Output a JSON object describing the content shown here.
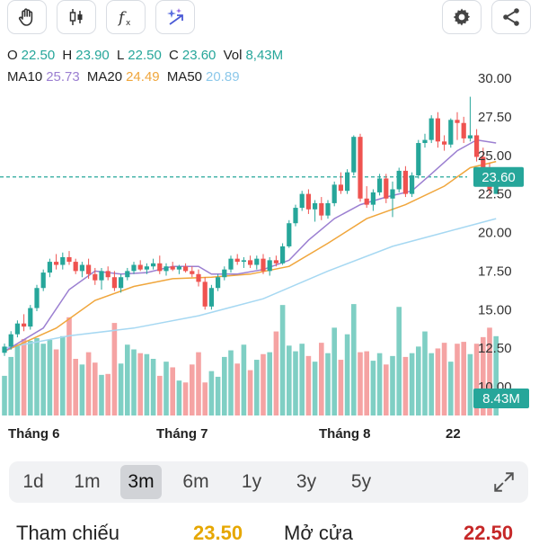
{
  "toolbar": {
    "left_icons": [
      "hand-icon",
      "candlestick-icon",
      "function-icon",
      "ai-sparkle-icon"
    ],
    "right_icons": [
      "gear-icon",
      "share-icon"
    ]
  },
  "ohlc": {
    "o_label": "O",
    "o_value": "22.50",
    "h_label": "H",
    "h_value": "23.90",
    "l_label": "L",
    "l_value": "22.50",
    "c_label": "C",
    "c_value": "23.60",
    "vol_label": "Vol",
    "vol_value": "8,43M"
  },
  "ma": {
    "ma10_label": "MA10",
    "ma10_value": "25.73",
    "ma20_label": "MA20",
    "ma20_value": "24.49",
    "ma50_label": "MA50",
    "ma50_value": "20.89"
  },
  "colors": {
    "up": "#26a69a",
    "down": "#ef5350",
    "ma10": "#9b7fd1",
    "ma20": "#f0a63c",
    "ma50": "#a6d8f2",
    "vol_up": "#7fcfc4",
    "vol_down": "#f5a3a3"
  },
  "chart_data": {
    "type": "candlestick",
    "y_ticks": [
      "30.00",
      "27.50",
      "25.00",
      "22.50",
      "20.00",
      "17.50",
      "15.00",
      "12.50",
      "10.00"
    ],
    "ylim": [
      10,
      30
    ],
    "x_labels": [
      "Tháng 6",
      "Tháng 7",
      "Tháng 8",
      "22"
    ],
    "current_price": 23.6,
    "current_price_label": "23.60",
    "current_volume_label": "8.43M",
    "candles": [
      [
        12.2,
        12.8,
        12.0,
        12.6
      ],
      [
        12.6,
        13.6,
        12.4,
        13.4
      ],
      [
        13.4,
        14.3,
        13.2,
        14.1
      ],
      [
        14.1,
        14.7,
        13.6,
        13.9
      ],
      [
        13.9,
        15.3,
        13.7,
        15.1
      ],
      [
        15.1,
        16.6,
        14.9,
        16.4
      ],
      [
        16.4,
        17.6,
        16.2,
        17.4
      ],
      [
        17.4,
        18.3,
        17.1,
        18.1
      ],
      [
        18.1,
        18.6,
        17.6,
        17.9
      ],
      [
        17.9,
        18.7,
        17.6,
        18.4
      ],
      [
        18.4,
        18.8,
        17.9,
        18.1
      ],
      [
        18.1,
        18.3,
        17.3,
        17.5
      ],
      [
        17.5,
        18.1,
        17.1,
        17.9
      ],
      [
        17.9,
        18.3,
        17.0,
        17.3
      ],
      [
        17.3,
        17.7,
        16.6,
        16.9
      ],
      [
        16.9,
        17.7,
        16.3,
        17.5
      ],
      [
        17.5,
        17.8,
        16.9,
        17.1
      ],
      [
        17.1,
        17.5,
        16.2,
        16.4
      ],
      [
        16.4,
        17.3,
        16.1,
        17.1
      ],
      [
        17.1,
        17.7,
        16.9,
        17.5
      ],
      [
        17.5,
        18.1,
        17.3,
        17.9
      ],
      [
        17.9,
        18.2,
        17.5,
        17.6
      ],
      [
        17.6,
        18.0,
        17.3,
        17.8
      ],
      [
        17.8,
        18.3,
        17.6,
        18.0
      ],
      [
        18.0,
        18.5,
        17.3,
        17.5
      ],
      [
        17.5,
        18.0,
        17.2,
        17.8
      ],
      [
        17.8,
        18.1,
        17.5,
        17.6
      ],
      [
        17.6,
        17.9,
        17.3,
        17.8
      ],
      [
        17.8,
        18.0,
        17.4,
        17.5
      ],
      [
        17.5,
        17.8,
        17.1,
        17.3
      ],
      [
        17.3,
        17.6,
        16.5,
        16.8
      ],
      [
        16.8,
        17.1,
        15.0,
        15.2
      ],
      [
        15.2,
        16.6,
        15.0,
        16.4
      ],
      [
        16.4,
        17.3,
        16.2,
        17.1
      ],
      [
        17.1,
        17.8,
        16.9,
        17.6
      ],
      [
        17.6,
        18.5,
        17.4,
        18.3
      ],
      [
        18.3,
        18.6,
        17.9,
        18.1
      ],
      [
        18.1,
        18.4,
        17.7,
        18.2
      ],
      [
        18.2,
        18.5,
        17.7,
        17.9
      ],
      [
        17.9,
        18.5,
        17.6,
        18.3
      ],
      [
        18.3,
        18.6,
        17.3,
        17.5
      ],
      [
        17.5,
        18.4,
        17.2,
        18.2
      ],
      [
        18.2,
        18.5,
        17.8,
        18.0
      ],
      [
        18.0,
        19.3,
        17.9,
        19.1
      ],
      [
        19.1,
        20.8,
        19.0,
        20.6
      ],
      [
        20.6,
        21.8,
        20.4,
        21.6
      ],
      [
        21.6,
        22.7,
        21.4,
        22.5
      ],
      [
        22.5,
        22.8,
        21.2,
        21.5
      ],
      [
        21.5,
        22.1,
        20.7,
        21.9
      ],
      [
        21.9,
        22.3,
        20.8,
        21.1
      ],
      [
        21.1,
        22.1,
        20.9,
        21.9
      ],
      [
        21.9,
        23.3,
        21.7,
        23.1
      ],
      [
        23.1,
        23.9,
        22.5,
        22.7
      ],
      [
        22.7,
        24.1,
        22.5,
        23.9
      ],
      [
        23.9,
        26.3,
        23.7,
        26.2
      ],
      [
        26.2,
        26.4,
        22.0,
        22.2
      ],
      [
        22.2,
        23.0,
        21.6,
        21.8
      ],
      [
        21.8,
        22.8,
        21.4,
        22.6
      ],
      [
        22.6,
        23.8,
        22.4,
        23.5
      ],
      [
        23.5,
        23.8,
        21.9,
        22.2
      ],
      [
        22.2,
        23.3,
        21.0,
        22.8
      ],
      [
        22.8,
        24.2,
        22.6,
        24.0
      ],
      [
        24.0,
        24.3,
        22.3,
        22.5
      ],
      [
        22.5,
        23.9,
        22.3,
        23.7
      ],
      [
        23.7,
        26.0,
        23.5,
        25.8
      ],
      [
        25.8,
        26.4,
        25.5,
        26.0
      ],
      [
        26.0,
        27.6,
        25.8,
        27.4
      ],
      [
        27.4,
        27.8,
        25.5,
        25.9
      ],
      [
        25.9,
        26.3,
        25.3,
        25.7
      ],
      [
        25.7,
        27.4,
        25.5,
        27.3
      ],
      [
        27.3,
        27.8,
        26.0,
        27.1
      ],
      [
        27.1,
        27.5,
        25.8,
        26.1
      ],
      [
        26.1,
        28.8,
        25.9,
        26.3
      ],
      [
        26.3,
        26.7,
        24.6,
        24.9
      ],
      [
        24.9,
        25.5,
        23.9,
        24.1
      ],
      [
        24.1,
        24.5,
        22.5,
        22.8
      ],
      [
        22.5,
        23.9,
        22.5,
        23.6
      ]
    ],
    "volumes": [
      4.2,
      6.2,
      7.5,
      8.1,
      7.9,
      8.2,
      7.6,
      8.0,
      7.0,
      8.4,
      10.4,
      6.0,
      5.4,
      6.7,
      5.6,
      4.3,
      4.4,
      9.8,
      5.5,
      7.5,
      7.0,
      6.6,
      6.5,
      6.0,
      4.2,
      5.7,
      5.1,
      3.7,
      3.5,
      5.4,
      6.7,
      3.5,
      4.7,
      4.1,
      6.2,
      6.9,
      5.5,
      7.5,
      4.8,
      5.9,
      6.5,
      6.7,
      8.9,
      11.7,
      7.4,
      6.8,
      7.6,
      6.3,
      5.7,
      7.7,
      6.6,
      9.3,
      5.9,
      8.6,
      11.8,
      6.7,
      6.8,
      5.8,
      6.6,
      5.4,
      6.3,
      11.5,
      6.2,
      6.6,
      7.3,
      8.9,
      6.6,
      7.1,
      7.7,
      5.7,
      7.6,
      7.8,
      6.5,
      7.6,
      8.3,
      9.3,
      8.4
    ],
    "ma10": [
      [
        0,
        12.3
      ],
      [
        6,
        13.8
      ],
      [
        10,
        16.3
      ],
      [
        14,
        17.5
      ],
      [
        18,
        17.3
      ],
      [
        22,
        17.4
      ],
      [
        26,
        17.8
      ],
      [
        30,
        17.8
      ],
      [
        32,
        17.3
      ],
      [
        36,
        17.3
      ],
      [
        40,
        17.6
      ],
      [
        44,
        18.2
      ],
      [
        47,
        19.5
      ],
      [
        51,
        20.9
      ],
      [
        55,
        21.8
      ],
      [
        59,
        22.3
      ],
      [
        63,
        22.7
      ],
      [
        66,
        23.8
      ],
      [
        70,
        25.3
      ],
      [
        73,
        26.0
      ],
      [
        76,
        25.8
      ]
    ],
    "ma20": [
      [
        0,
        12.3
      ],
      [
        8,
        13.8
      ],
      [
        14,
        15.6
      ],
      [
        20,
        16.5
      ],
      [
        26,
        17.0
      ],
      [
        32,
        17.1
      ],
      [
        38,
        17.3
      ],
      [
        44,
        17.8
      ],
      [
        50,
        19.3
      ],
      [
        56,
        20.9
      ],
      [
        62,
        21.8
      ],
      [
        68,
        23.0
      ],
      [
        72,
        24.2
      ],
      [
        76,
        24.6
      ]
    ],
    "ma50": [
      [
        0,
        12.5
      ],
      [
        10,
        13.3
      ],
      [
        20,
        13.8
      ],
      [
        30,
        14.6
      ],
      [
        40,
        15.7
      ],
      [
        50,
        17.5
      ],
      [
        60,
        19.1
      ],
      [
        68,
        20.0
      ],
      [
        76,
        20.9
      ]
    ]
  },
  "ranges": [
    "1d",
    "1m",
    "3m",
    "6m",
    "1y",
    "3y",
    "5y"
  ],
  "active_range": "3m",
  "summary": {
    "ref_label": "Tham chiếu",
    "ref_value": "23.50",
    "open_label": "Mở cửa",
    "open_value": "22.50"
  }
}
